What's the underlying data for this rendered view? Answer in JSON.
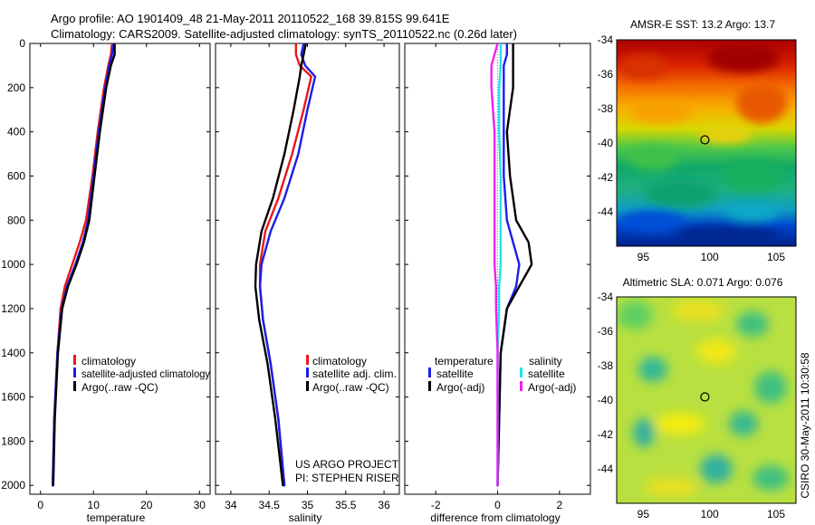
{
  "header": {
    "line1": "Argo profile: AO 1901409_48 21-May-2011 20110522_168 39.815S 99.641E",
    "line2": "Climatology: CARS2009. Satellite-adjusted climatology: synTS_20110522.nc (0.26d later)"
  },
  "credits": {
    "project": "US ARGO PROJECT",
    "pi": "PI: STEPHEN RISER",
    "stamp": "CSIRO 30-May-2011 10:30:58"
  },
  "colors": {
    "climatology": "#e8181c",
    "satellite": "#1a1ee8",
    "argo": "#000000",
    "sat_salinity": "#22e0f0",
    "argo_salinity": "#f020f0"
  },
  "chart_data": [
    {
      "type": "line",
      "id": "temperature",
      "xlabel": "temperature",
      "xlim": [
        -2,
        32
      ],
      "ylim": [
        0,
        2040
      ],
      "y_reversed": true,
      "xticks": [
        0,
        10,
        20,
        30
      ],
      "yticks": [
        0,
        200,
        400,
        600,
        800,
        1000,
        1200,
        1400,
        1600,
        1800,
        2000
      ],
      "legend": {
        "placement": "lower-center",
        "entries": [
          "climatology",
          "satellite-adjusted climatology",
          "Argo(..raw -QC)"
        ]
      },
      "series": [
        {
          "name": "climatology",
          "color": "#e8181c",
          "x": [
            13.5,
            13.3,
            12.8,
            12.0,
            10.8,
            9.8,
            8.6,
            7.4,
            6.0,
            4.6,
            3.8,
            3.2,
            2.6,
            2.3
          ],
          "y": [
            0,
            50,
            100,
            200,
            400,
            600,
            800,
            900,
            1000,
            1100,
            1200,
            1400,
            1700,
            2000
          ]
        },
        {
          "name": "satellite-adjusted climatology",
          "color": "#1a1ee8",
          "x": [
            13.8,
            13.5,
            13.0,
            12.2,
            11.0,
            10.0,
            9.0,
            8.0,
            6.6,
            5.0,
            4.0,
            3.2,
            2.6,
            2.3
          ],
          "y": [
            0,
            50,
            100,
            200,
            400,
            600,
            800,
            900,
            1000,
            1100,
            1200,
            1400,
            1700,
            2000
          ]
        },
        {
          "name": "Argo(..raw -QC)",
          "color": "#000000",
          "x": [
            14.0,
            14.0,
            13.3,
            12.4,
            11.2,
            10.2,
            9.2,
            8.2,
            6.8,
            5.2,
            4.1,
            3.3,
            2.7,
            2.4
          ],
          "y": [
            0,
            50,
            100,
            200,
            400,
            600,
            800,
            900,
            1000,
            1100,
            1200,
            1400,
            1700,
            2000
          ]
        }
      ]
    },
    {
      "type": "line",
      "id": "salinity",
      "xlabel": "salinity",
      "xlim": [
        33.8,
        36.2
      ],
      "ylim": [
        0,
        2040
      ],
      "y_reversed": true,
      "xticks": [
        34,
        34.5,
        35,
        35.5,
        36
      ],
      "xticklabels": [
        "34",
        "34.5",
        "35",
        "35.5",
        "36"
      ],
      "legend": {
        "placement": "lower-right",
        "entries": [
          "climatology",
          "satellite adj. clim.",
          "Argo(..raw -QC)"
        ]
      },
      "series": [
        {
          "name": "climatology",
          "color": "#e8181c",
          "x": [
            34.85,
            34.85,
            34.9,
            35.05,
            34.95,
            34.8,
            34.62,
            34.45,
            34.38,
            34.38,
            34.42,
            34.52,
            34.62,
            34.7
          ],
          "y": [
            0,
            50,
            100,
            150,
            300,
            500,
            700,
            850,
            1000,
            1100,
            1250,
            1450,
            1700,
            2000
          ]
        },
        {
          "name": "satellite adj. clim.",
          "color": "#1a1ee8",
          "x": [
            34.95,
            34.92,
            34.97,
            35.1,
            35.0,
            34.88,
            34.7,
            34.52,
            34.4,
            34.38,
            34.42,
            34.52,
            34.62,
            34.7
          ],
          "y": [
            0,
            50,
            100,
            150,
            300,
            500,
            700,
            850,
            1000,
            1100,
            1250,
            1450,
            1700,
            2000
          ]
        },
        {
          "name": "Argo(..raw -QC)",
          "color": "#000000",
          "x": [
            34.98,
            34.95,
            34.92,
            34.9,
            34.82,
            34.7,
            34.55,
            34.4,
            34.33,
            34.32,
            34.37,
            34.48,
            34.58,
            34.68
          ],
          "y": [
            0,
            50,
            100,
            150,
            300,
            500,
            700,
            850,
            1000,
            1100,
            1250,
            1450,
            1700,
            2000
          ]
        }
      ]
    },
    {
      "type": "line",
      "id": "difference",
      "xlabel": "difference from climatology",
      "xlim": [
        -3,
        3
      ],
      "ylim": [
        0,
        2040
      ],
      "y_reversed": true,
      "xticks": [
        -2,
        0,
        2
      ],
      "legend": {
        "placement": "lower-center",
        "groups": [
          "temperature",
          "salinity"
        ],
        "entries": [
          "satellite",
          "Argo(-adj)",
          "satellite",
          "Argo(-adj)"
        ]
      },
      "series": [
        {
          "name": "temperature satellite",
          "color": "#1a1ee8",
          "x": [
            0.3,
            0.3,
            0.2,
            0.2,
            0.2,
            0.2,
            0.3,
            0.5,
            0.7,
            0.6,
            0.3,
            0.1,
            0.05,
            0.0
          ],
          "y": [
            0,
            50,
            100,
            200,
            400,
            600,
            800,
            900,
            1000,
            1100,
            1200,
            1400,
            1700,
            2000
          ]
        },
        {
          "name": "temperature Argo(-adj)",
          "color": "#000000",
          "x": [
            0.5,
            0.5,
            0.5,
            0.5,
            0.3,
            0.4,
            0.6,
            1.0,
            1.1,
            0.7,
            0.3,
            0.1,
            0.05,
            0.0
          ],
          "y": [
            0,
            50,
            100,
            200,
            400,
            600,
            800,
            900,
            1000,
            1100,
            1200,
            1400,
            1700,
            2000
          ]
        },
        {
          "name": "salinity satellite",
          "color": "#22e0f0",
          "x": [
            0.1,
            0.1,
            0.1,
            0.05,
            0.05,
            0.1,
            0.1,
            0.1,
            0.1,
            0.05,
            0.05,
            0.0,
            0.0,
            0.0
          ],
          "y": [
            0,
            50,
            100,
            200,
            400,
            600,
            800,
            900,
            1000,
            1100,
            1200,
            1400,
            1700,
            2000
          ]
        },
        {
          "name": "salinity Argo(-adj)",
          "color": "#f020f0",
          "x": [
            0.0,
            -0.1,
            -0.2,
            -0.2,
            -0.1,
            -0.1,
            -0.1,
            -0.1,
            -0.1,
            -0.05,
            -0.05,
            0.0,
            0.0,
            0.0
          ],
          "y": [
            0,
            50,
            100,
            200,
            400,
            600,
            800,
            900,
            1000,
            1100,
            1200,
            1400,
            1700,
            2000
          ]
        }
      ]
    },
    {
      "type": "heatmap",
      "id": "sst_map",
      "title": "AMSR-E SST: 13.2 Argo: 13.7",
      "xlim": [
        93,
        106.5
      ],
      "ylim": [
        -46,
        -34
      ],
      "xticks": [
        95,
        100,
        105
      ],
      "yticks": [
        -34,
        -36,
        -38,
        -40,
        -42,
        -44
      ],
      "marker": {
        "lon": 99.641,
        "lat": -39.815
      }
    },
    {
      "type": "heatmap",
      "id": "sla_map",
      "title": "Altimetric SLA: 0.071 Argo: 0.076",
      "xlim": [
        93,
        106.5
      ],
      "ylim": [
        -46,
        -34
      ],
      "xticks": [
        95,
        100,
        105
      ],
      "yticks": [
        -34,
        -36,
        -38,
        -40,
        -42,
        -44
      ],
      "marker": {
        "lon": 99.641,
        "lat": -39.815
      }
    }
  ]
}
